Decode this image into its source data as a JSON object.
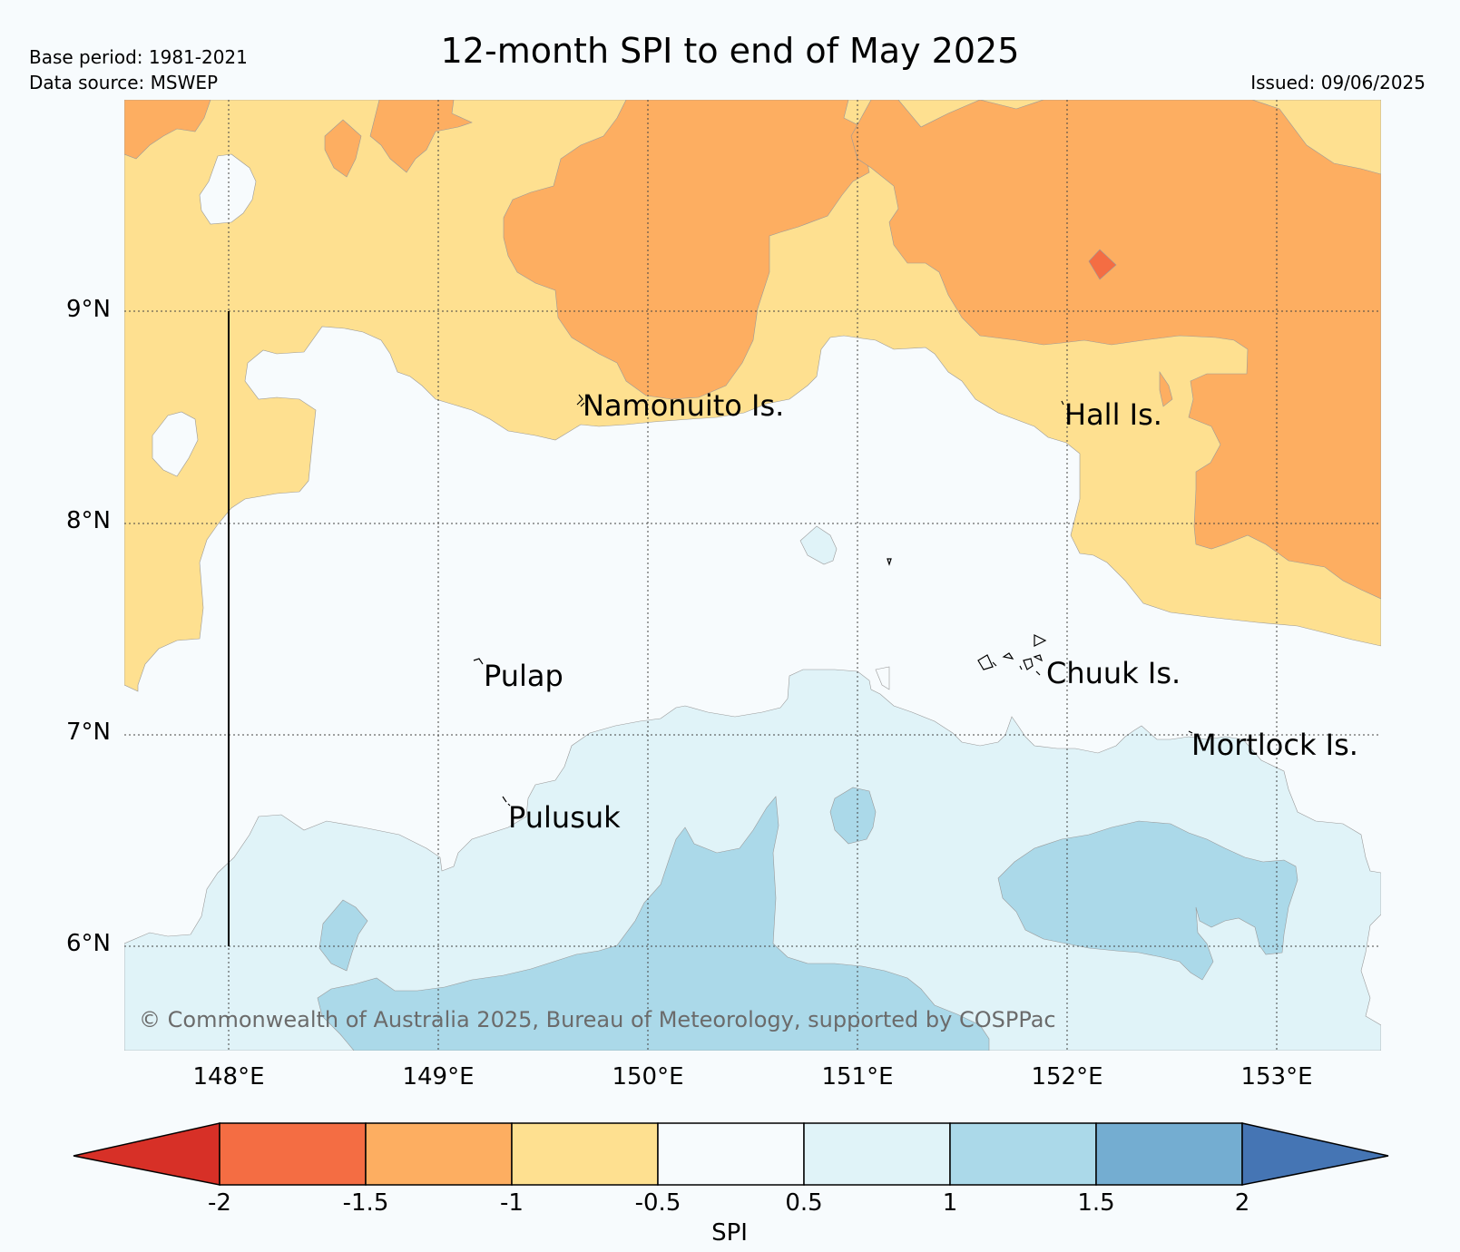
{
  "header": {
    "title": "12-month SPI to end of May 2025",
    "base_period": "Base period: 1981-2021",
    "data_source": "Data source: MSWEP",
    "issued": "Issued: 09/06/2025"
  },
  "map": {
    "lat_labels": [
      "9°N",
      "8°N",
      "7°N",
      "6°N"
    ],
    "lon_labels": [
      "148°E",
      "149°E",
      "150°E",
      "151°E",
      "152°E",
      "153°E"
    ],
    "places": [
      {
        "name": "Namonuito Is."
      },
      {
        "name": "Hall Is."
      },
      {
        "name": "Pulap"
      },
      {
        "name": "Chuuk Is."
      },
      {
        "name": "Mortlock Is."
      },
      {
        "name": "Pulusuk"
      }
    ],
    "copyright": "© Commonwealth of Australia 2025, Bureau of Meteorology, supported by COSPPac"
  },
  "colorbar": {
    "title": "SPI",
    "ticks": [
      "-2",
      "-1.5",
      "-1",
      "-0.5",
      "0.5",
      "1",
      "1.5",
      "2"
    ],
    "colors": [
      "#d73027",
      "#f46d43",
      "#fdae61",
      "#fee090",
      "#f7fbfd",
      "#e0f3f8",
      "#abd9e9",
      "#74add1",
      "#4575b4"
    ]
  },
  "colors": {
    "spi_lt_-2": "#d73027",
    "spi_-2_-1.5": "#f46d43",
    "spi_-1.5_-1": "#fdae61",
    "spi_-1_-0.5": "#fee090",
    "spi_-0.5_0.5": "#f7fbfd",
    "spi_0.5_1": "#e0f3f8",
    "spi_1_1.5": "#abd9e9",
    "spi_1.5_2": "#74add1",
    "spi_gt_2": "#4575b4"
  }
}
